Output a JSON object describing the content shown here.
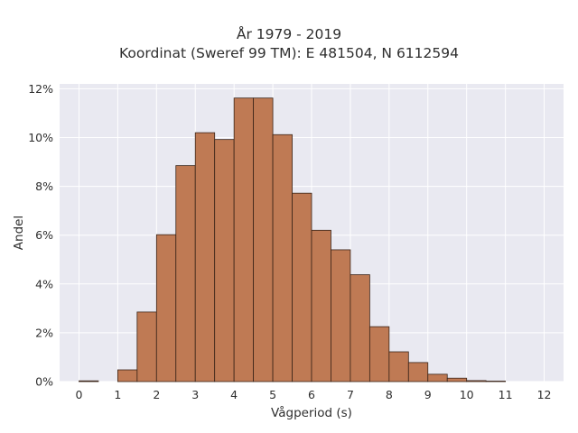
{
  "chart_data": {
    "type": "bar",
    "title": "År 1979 - 2019",
    "subtitle": "Koordinat (Sweref 99 TM): E 481504, N 6112594",
    "xlabel": "Vågperiod (s)",
    "ylabel": "Andel",
    "xlim": [
      -0.5,
      12.5
    ],
    "ylim": [
      0,
      12.2
    ],
    "xticks": [
      "0",
      "1",
      "2",
      "3",
      "4",
      "5",
      "6",
      "7",
      "8",
      "9",
      "10",
      "11",
      "12"
    ],
    "yticks": [
      "0%",
      "2%",
      "4%",
      "6%",
      "8%",
      "10%",
      "12%"
    ],
    "bin_width": 0.5,
    "bins": [
      {
        "start": 0.0,
        "value": 0.03
      },
      {
        "start": 0.5,
        "value": 0.0
      },
      {
        "start": 1.0,
        "value": 0.48
      },
      {
        "start": 1.5,
        "value": 2.85
      },
      {
        "start": 2.0,
        "value": 6.02
      },
      {
        "start": 2.5,
        "value": 8.85
      },
      {
        "start": 3.0,
        "value": 10.2
      },
      {
        "start": 3.5,
        "value": 9.92
      },
      {
        "start": 4.0,
        "value": 11.62
      },
      {
        "start": 4.5,
        "value": 11.62
      },
      {
        "start": 5.0,
        "value": 10.12
      },
      {
        "start": 5.5,
        "value": 7.72
      },
      {
        "start": 6.0,
        "value": 6.2
      },
      {
        "start": 6.5,
        "value": 5.4
      },
      {
        "start": 7.0,
        "value": 4.38
      },
      {
        "start": 7.5,
        "value": 2.25
      },
      {
        "start": 8.0,
        "value": 1.22
      },
      {
        "start": 8.5,
        "value": 0.78
      },
      {
        "start": 9.0,
        "value": 0.3
      },
      {
        "start": 9.5,
        "value": 0.14
      },
      {
        "start": 10.0,
        "value": 0.04
      },
      {
        "start": 10.5,
        "value": 0.02
      }
    ],
    "grid": true,
    "colors": {
      "bar": "#bf7a54",
      "bar_edge": "#3a2418",
      "plot_bg": "#e9e9f1",
      "grid": "#ffffff"
    }
  }
}
